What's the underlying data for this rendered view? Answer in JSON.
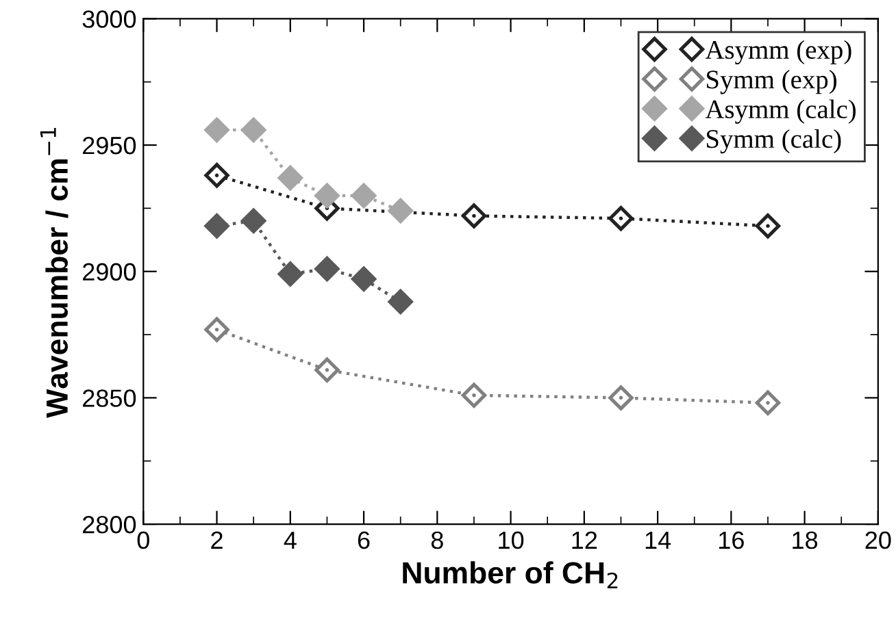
{
  "chart_data": {
    "type": "line",
    "xlabel": "Number of CH$_{2}$",
    "ylabel": "Wavenumber / cm$^{−1}$",
    "xlim": [
      0,
      20
    ],
    "xticks": [
      0,
      2,
      4,
      6,
      8,
      10,
      12,
      14,
      16,
      18,
      20
    ],
    "ylim": [
      2800,
      3000
    ],
    "yticks": [
      2800,
      2850,
      2900,
      2950,
      3000
    ],
    "line_style": "dotted",
    "legend": "top right",
    "grid": false,
    "series": [
      {
        "name": "Asymm (exp)",
        "color": "#222222",
        "marker": "diamond-open",
        "x": [
          2,
          5,
          9,
          13,
          17
        ],
        "values": [
          2938,
          2925,
          2922,
          2921,
          2918
        ]
      },
      {
        "name": "Symm (exp)",
        "color": "#808080",
        "marker": "diamond-open",
        "x": [
          2,
          5,
          9,
          13,
          17
        ],
        "values": [
          2877,
          2861,
          2851,
          2850,
          2848
        ]
      },
      {
        "name": "Asymm (calc)",
        "color": "#a6a6a6",
        "marker": "diamond",
        "x": [
          2,
          3,
          4,
          5,
          6,
          7
        ],
        "values": [
          2956,
          2956,
          2937,
          2930,
          2930,
          2924
        ]
      },
      {
        "name": "Symm (calc)",
        "color": "#595959",
        "marker": "diamond",
        "x": [
          2,
          3,
          4,
          5,
          6,
          7
        ],
        "values": [
          2918,
          2920,
          2899,
          2901,
          2897,
          2888
        ]
      }
    ]
  }
}
